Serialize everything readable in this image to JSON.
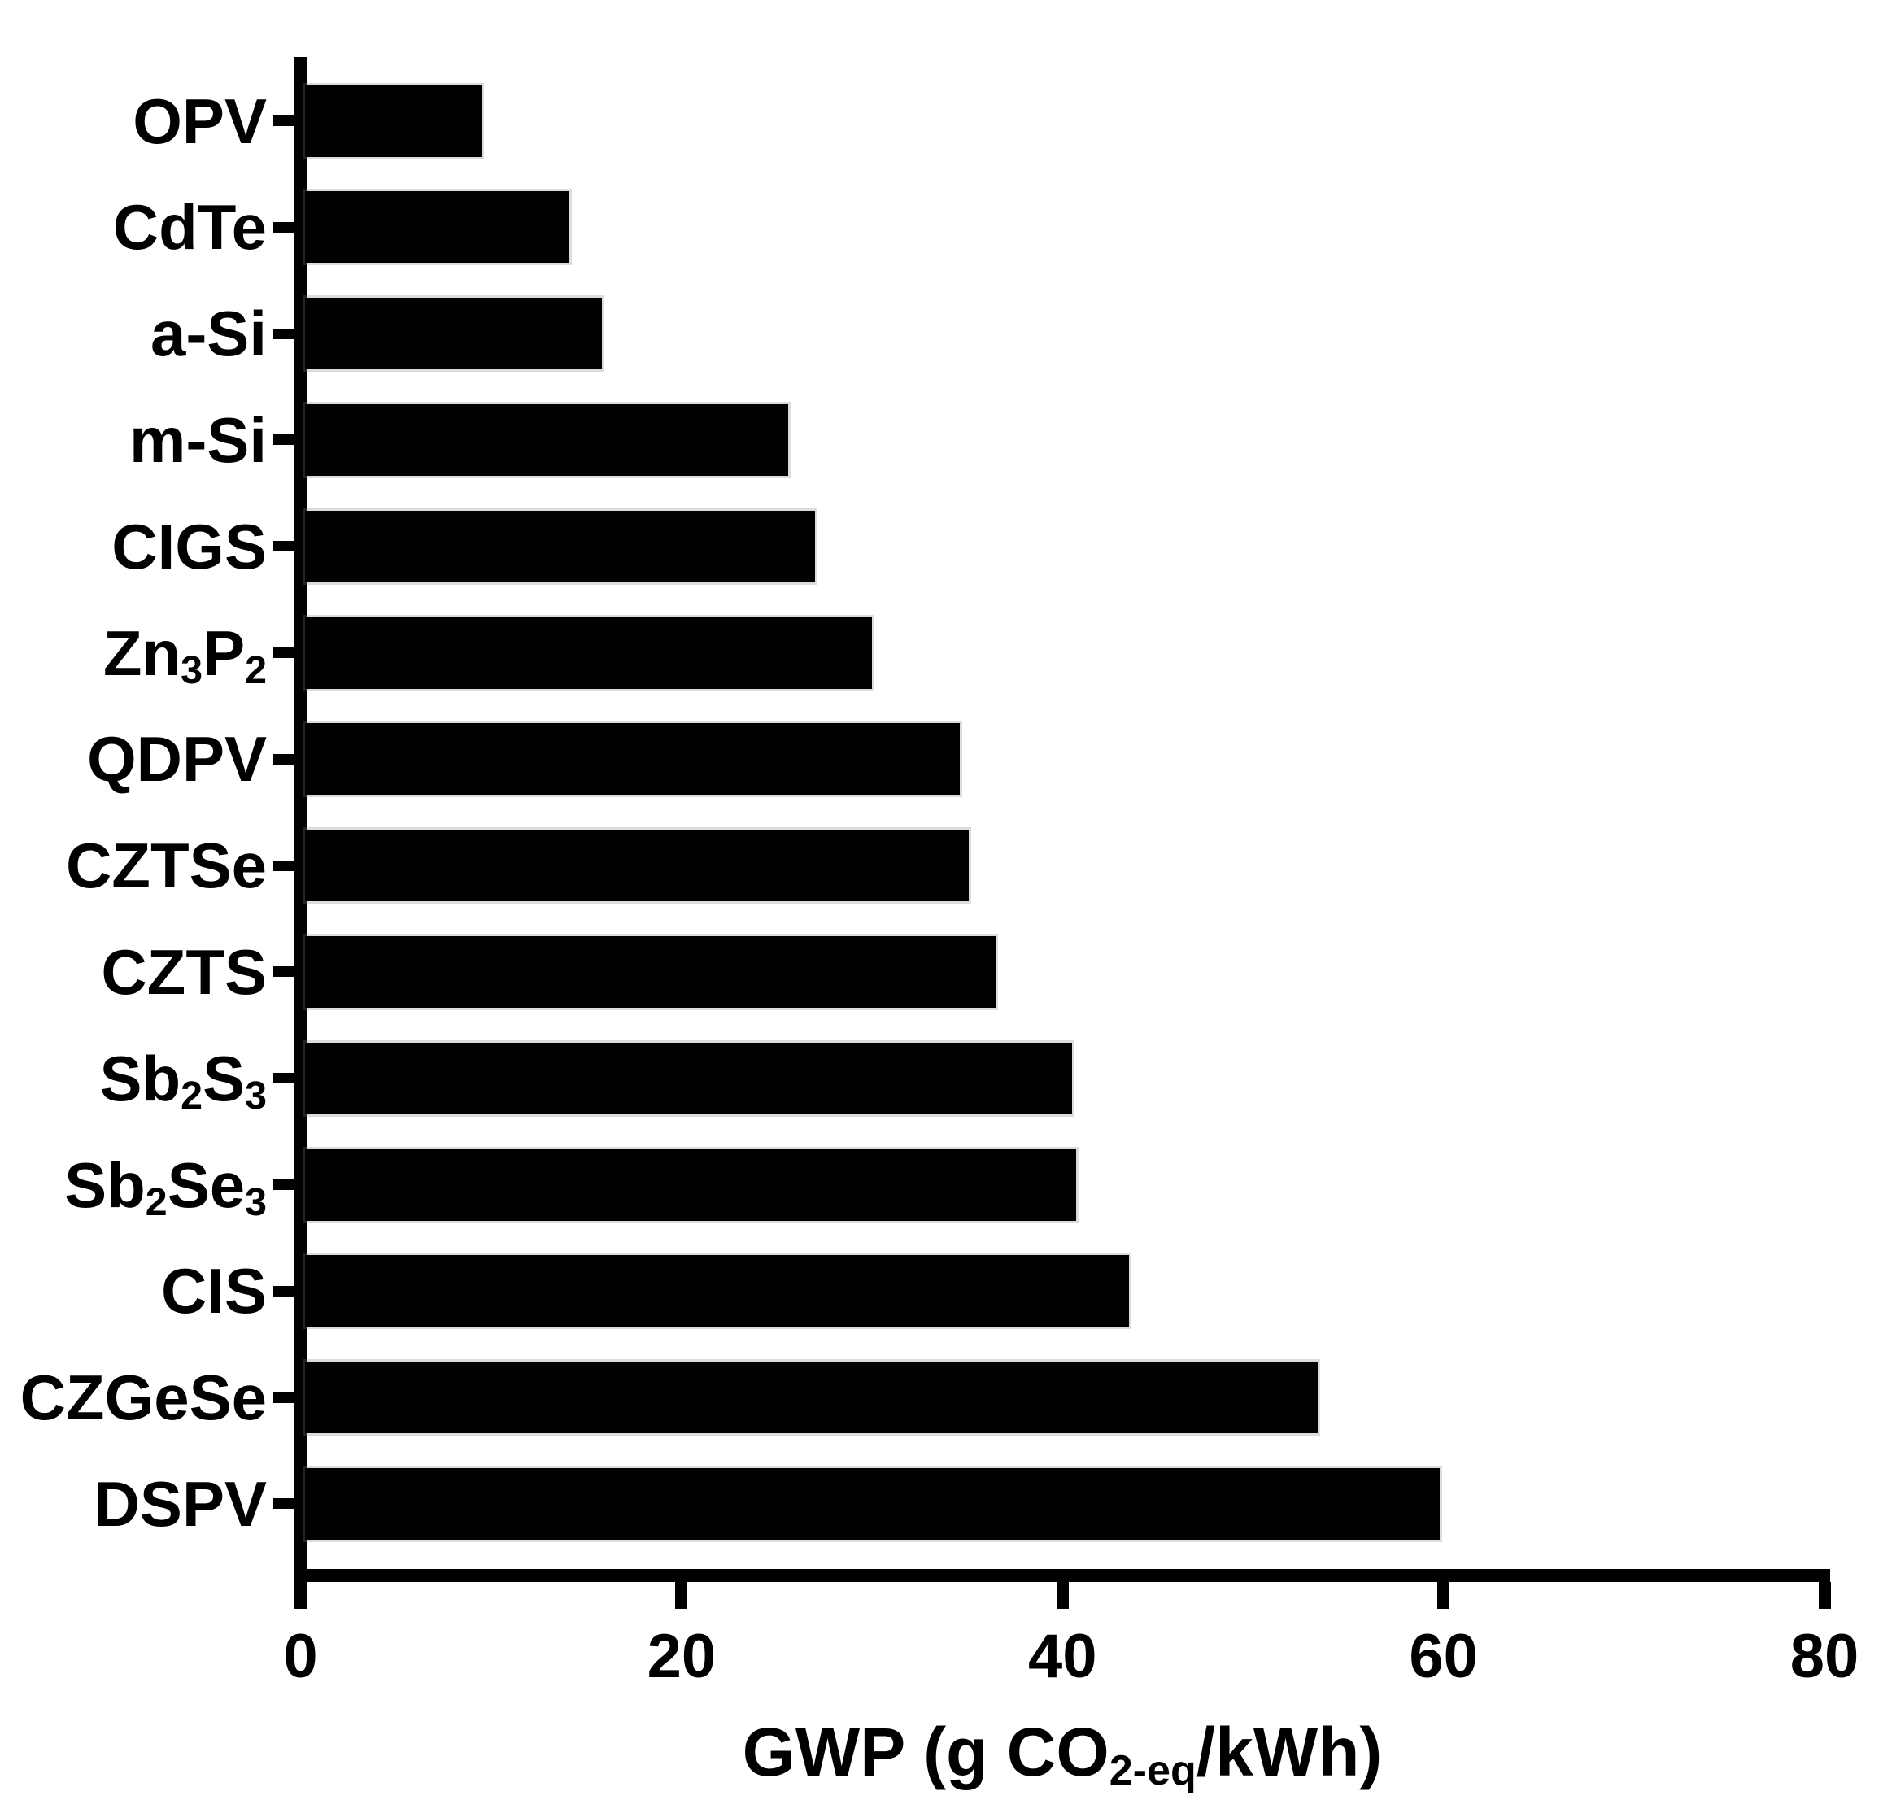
{
  "figure": {
    "background": "#ffffff",
    "bar_color": "#000000",
    "axis_color": "#000000",
    "text_color": "#000000"
  },
  "chart_data": {
    "type": "bar",
    "orientation": "horizontal",
    "title": "",
    "categories": [
      "OPV",
      "CdTe",
      "a-Si",
      "m-Si",
      "CIGS",
      "Zn3P2",
      "QDPV",
      "CZTSe",
      "CZTS",
      "Sb2S3",
      "Sb2Se3",
      "CIS",
      "CZGeSe",
      "DSPV"
    ],
    "values": [
      9.5,
      14.1,
      15.8,
      25.6,
      27.0,
      30.0,
      34.6,
      35.1,
      36.5,
      40.5,
      40.7,
      43.5,
      53.4,
      59.8
    ],
    "xlabel": "GWP (g CO2-eq/kWh)",
    "xlabel_parts": {
      "prefix": "GWP (g CO",
      "subscript": "2-eq",
      "suffix": "/kWh)"
    },
    "ylabel": "",
    "xlim": [
      0,
      80
    ],
    "x_ticks": [
      "0",
      "20",
      "40",
      "60",
      "80"
    ],
    "grid": false,
    "legend": "none"
  }
}
